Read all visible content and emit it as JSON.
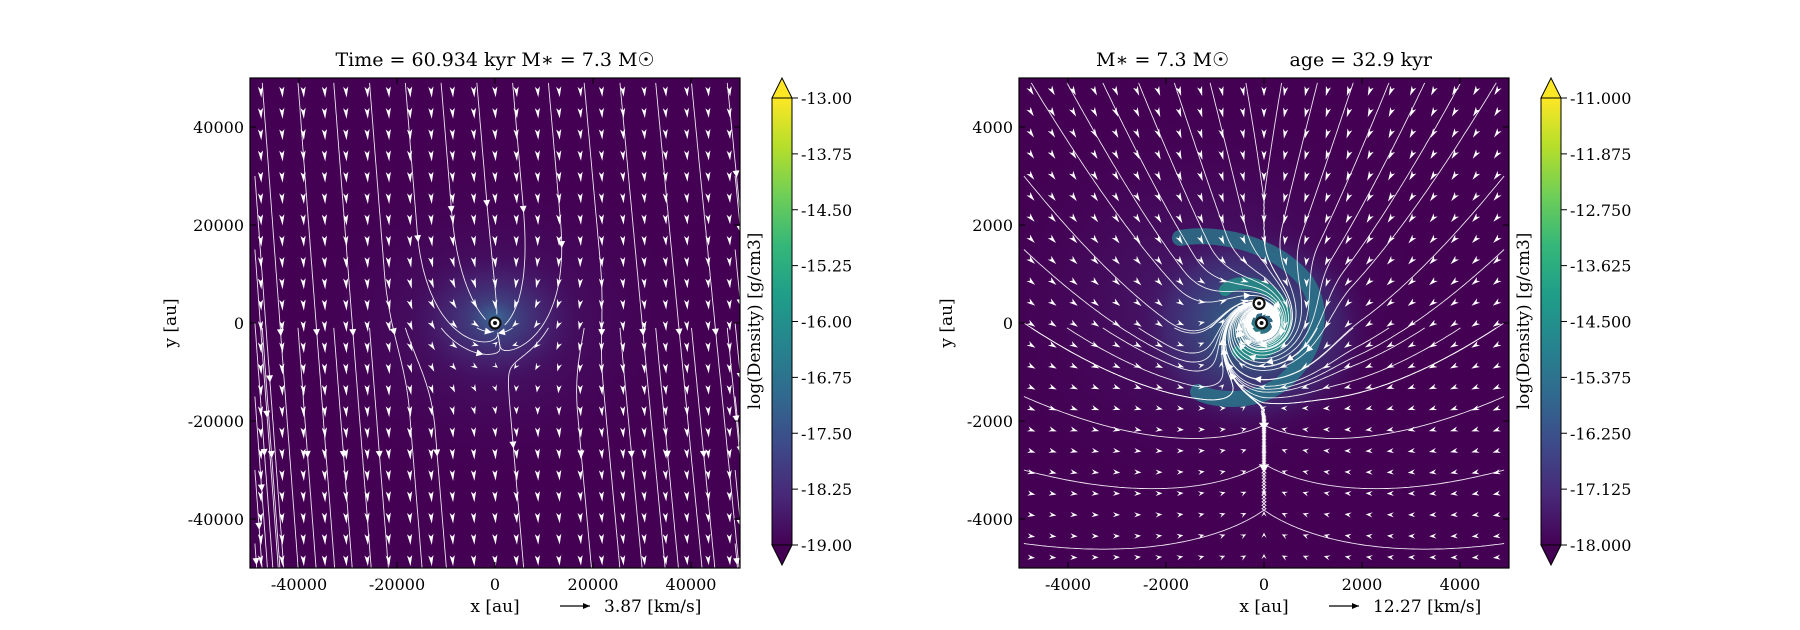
{
  "chart_data": [
    {
      "type": "heatmap",
      "title": "Time = 60.934 kyr    M∗ = 7.3 M☉",
      "xlabel": "x [au]",
      "ylabel": "y [au]",
      "xlim": [
        -50000,
        50000
      ],
      "ylim": [
        -50000,
        50000
      ],
      "xticks": [
        -40000,
        -20000,
        0,
        20000,
        40000
      ],
      "yticks": [
        -40000,
        -20000,
        0,
        20000,
        40000
      ],
      "velocity_key": "3.87 [km/s]",
      "colorbar": {
        "label": "log(Density) [g/cm3]",
        "min": -19.0,
        "max": -13.0,
        "ticks": [
          "-13.00",
          "-13.75",
          "-14.50",
          "-15.25",
          "-16.00",
          "-16.75",
          "-17.50",
          "-18.25",
          "-19.00"
        ],
        "extend": "both"
      },
      "sinks": [
        {
          "x": 0,
          "y": 0
        }
      ],
      "field": "infall"
    },
    {
      "type": "heatmap",
      "title": "M∗ = 7.3 M☉          age = 32.9 kyr",
      "xlabel": "x [au]",
      "ylabel": "y [au]",
      "xlim": [
        -5000,
        5000
      ],
      "ylim": [
        -5000,
        5000
      ],
      "xticks": [
        -4000,
        -2000,
        0,
        2000,
        4000
      ],
      "yticks": [
        -4000,
        -2000,
        0,
        2000,
        4000
      ],
      "velocity_key": "12.27 [km/s]",
      "colorbar": {
        "label": "log(Density) [g/cm3]",
        "min": -18.0,
        "max": -11.0,
        "ticks": [
          "-11.000",
          "-11.875",
          "-12.750",
          "-13.625",
          "-14.500",
          "-15.375",
          "-16.250",
          "-17.125",
          "-18.000"
        ],
        "extend": "both"
      },
      "sinks": [
        {
          "x": -100,
          "y": 400
        },
        {
          "x": -50,
          "y": 0
        }
      ],
      "field": "spiral"
    }
  ],
  "colors": {
    "background": "#440154",
    "streamline": "#ffffff",
    "viridis": [
      "#440154",
      "#482878",
      "#3e4989",
      "#31688e",
      "#26828e",
      "#1f9e89",
      "#35b779",
      "#6ece58",
      "#b5de2b",
      "#fde725"
    ]
  }
}
